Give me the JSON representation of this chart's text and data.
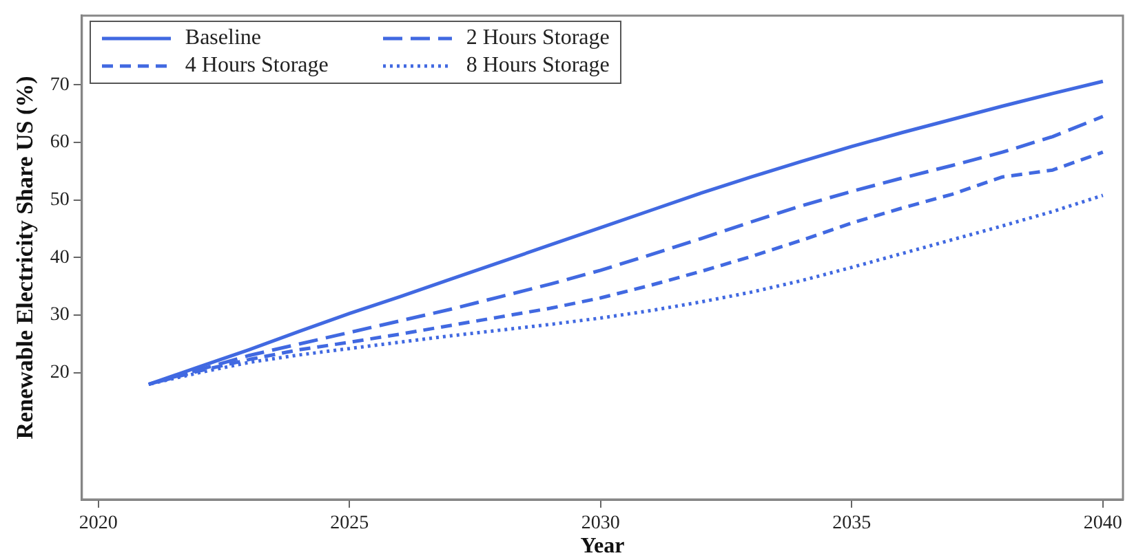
{
  "chart_data": {
    "type": "line",
    "xlabel": "Year",
    "ylabel": "Renewable Electricity Share US (%)",
    "x": [
      2021,
      2022,
      2023,
      2024,
      2025,
      2026,
      2027,
      2028,
      2029,
      2030,
      2031,
      2032,
      2033,
      2034,
      2035,
      2036,
      2037,
      2038,
      2039,
      2040
    ],
    "xlim": [
      2019.67,
      2040.4
    ],
    "xticks": [
      2020,
      2025,
      2030,
      2035,
      2040
    ],
    "ylim": [
      -2,
      82
    ],
    "yticks": [
      20,
      30,
      40,
      50,
      60,
      70
    ],
    "grid": false,
    "legend": "top left",
    "marker": "none",
    "series": [
      {
        "name": "Baseline",
        "color": "#4169e1",
        "line_style": "solid",
        "values": [
          18,
          21,
          24,
          27.2,
          30.3,
          33.2,
          36.2,
          39.2,
          42.2,
          45.2,
          48.2,
          51.2,
          54,
          56.7,
          59.3,
          61.7,
          64,
          66.3,
          68.5,
          70.6
        ]
      },
      {
        "name": "2 Hours Storage",
        "color": "#4169e1",
        "line_style": "longdash",
        "values": [
          18,
          20.5,
          23,
          25,
          27,
          29,
          31,
          33.2,
          35.4,
          37.8,
          40.5,
          43.3,
          46.2,
          49,
          51.5,
          53.8,
          56,
          58.3,
          61,
          64.5
        ]
      },
      {
        "name": "4 Hours Storage",
        "color": "#4169e1",
        "line_style": "dashed",
        "values": [
          18,
          20.3,
          22.3,
          24,
          25.3,
          26.7,
          28.2,
          29.7,
          31.2,
          33,
          35.2,
          37.6,
          40.2,
          43,
          46,
          48.6,
          51,
          54,
          55.2,
          58.3
        ]
      },
      {
        "name": "8 Hours Storage",
        "color": "#4169e1",
        "line_style": "dotted",
        "values": [
          18,
          20,
          21.8,
          23.1,
          24.2,
          25.3,
          26.4,
          27.4,
          28.4,
          29.5,
          30.8,
          32.3,
          34,
          36,
          38.3,
          40.7,
          43.1,
          45.5,
          48,
          50.8
        ]
      }
    ]
  }
}
